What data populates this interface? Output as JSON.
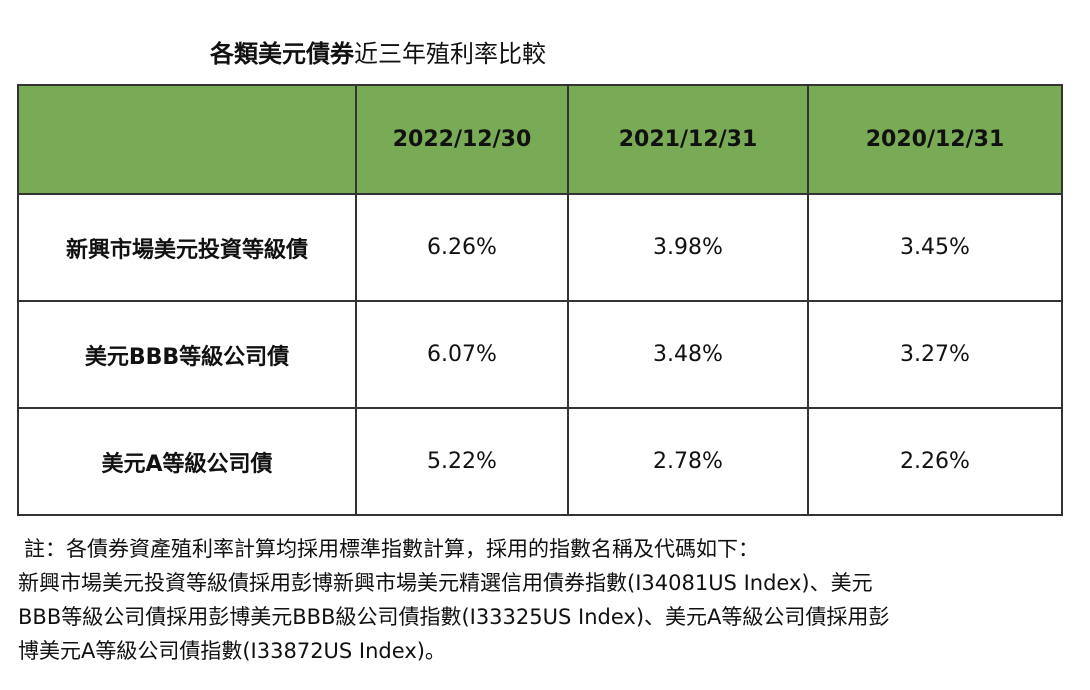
{
  "title": {
    "bold": "各類美元債券",
    "light": "近三年殖利率比較"
  },
  "table": {
    "columns": [
      "",
      "2022/12/30",
      "2021/12/31",
      "2020/12/31"
    ],
    "rows": [
      {
        "label": "新興市場美元投資等級債",
        "values": [
          "6.26%",
          "3.98%",
          "3.45%"
        ]
      },
      {
        "label": "美元BBB等級公司債",
        "values": [
          "6.07%",
          "3.48%",
          "3.27%"
        ]
      },
      {
        "label": "美元A等級公司債",
        "values": [
          "5.22%",
          "2.78%",
          "2.26%"
        ]
      }
    ]
  },
  "note": {
    "line1": "註：各債券資產殖利率計算均採用標準指數計算，採用的指數名稱及代碼如下：",
    "line2": "新興市場美元投資等級債採用彭博新興市場美元精選信用債券指數(I34081US Index)、美元",
    "line3": "BBB等級公司債採用彭博美元BBB級公司債指數(I33325US Index)、美元A等級公司債採用彭",
    "line4": "博美元A等級公司債指數(I33872US Index)。"
  },
  "colors": {
    "header_bg": "#79ab56",
    "border": "#333333"
  }
}
